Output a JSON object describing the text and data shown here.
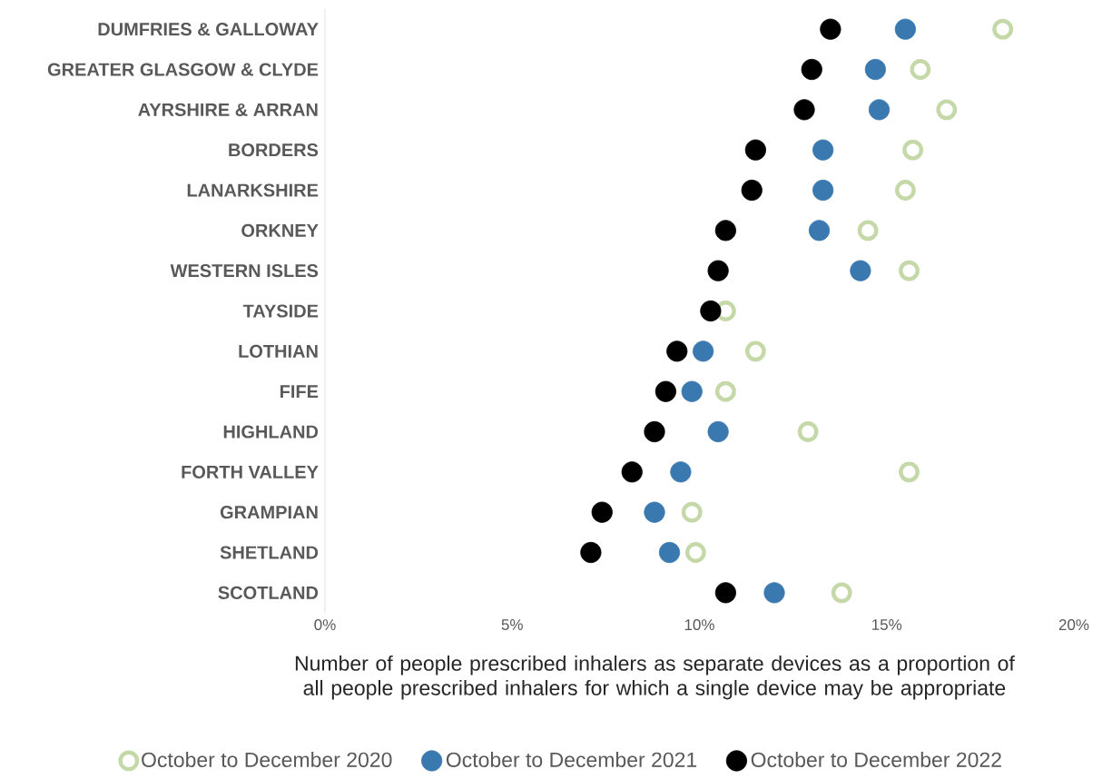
{
  "chart_data": {
    "type": "scatter",
    "orientation": "horizontal",
    "xlabel": "Number of people prescribed inhalers as separate devices as a proportion of all people prescribed inhalers for which a single device may be appropriate",
    "categories": [
      "DUMFRIES & GALLOWAY",
      "GREATER GLASGOW & CLYDE",
      "AYRSHIRE & ARRAN",
      "BORDERS",
      "LANARKSHIRE",
      "ORKNEY",
      "WESTERN ISLES",
      "TAYSIDE",
      "LOTHIAN",
      "FIFE",
      "HIGHLAND",
      "FORTH VALLEY",
      "GRAMPIAN",
      "SHETLAND",
      "SCOTLAND"
    ],
    "series": [
      {
        "name": "October to December 2020",
        "color": "#c5d9a8",
        "values": [
          18.1,
          15.9,
          16.6,
          15.7,
          15.5,
          14.5,
          15.6,
          10.7,
          11.5,
          10.7,
          12.9,
          15.6,
          9.8,
          9.9,
          13.8
        ]
      },
      {
        "name": "October to December 2021",
        "color": "#3a78b0",
        "values": [
          15.5,
          14.7,
          14.8,
          13.3,
          13.3,
          13.2,
          14.3,
          null,
          10.1,
          9.8,
          10.5,
          9.5,
          8.8,
          9.2,
          12.0
        ]
      },
      {
        "name": "October to December 2022",
        "color": "#000000",
        "values": [
          13.5,
          13.0,
          12.8,
          11.5,
          11.4,
          10.7,
          10.5,
          10.3,
          9.4,
          9.1,
          8.8,
          8.2,
          7.4,
          7.1,
          10.7
        ]
      }
    ],
    "xlim": [
      0,
      20
    ],
    "xticks": [
      {
        "value": 0,
        "label": "0%"
      },
      {
        "value": 5,
        "label": "5%"
      },
      {
        "value": 10,
        "label": "10%"
      },
      {
        "value": 15,
        "label": "15%"
      },
      {
        "value": 20,
        "label": "20%"
      }
    ],
    "grid": false,
    "legend": "bottom"
  }
}
